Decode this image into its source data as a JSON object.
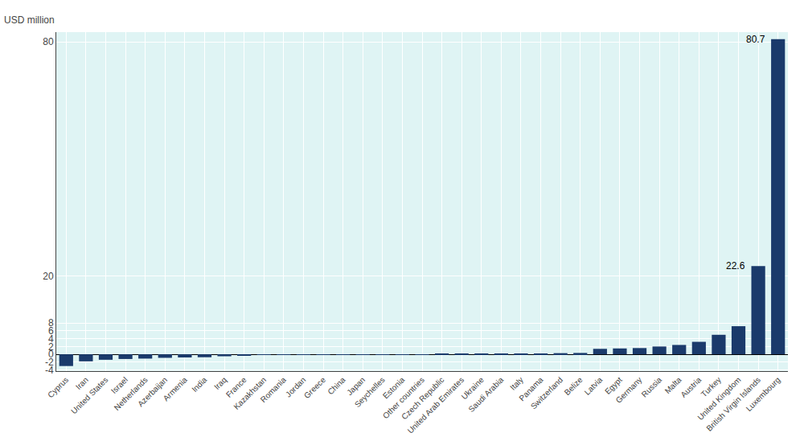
{
  "chart_data": {
    "type": "bar",
    "ylabel": "USD million",
    "categories": [
      "Cyprus",
      "Iran",
      "United States",
      "Israel",
      "Netherlands",
      "Azerbaijan",
      "Armenia",
      "India",
      "Iraq",
      "France",
      "Kazakhstan",
      "Romania",
      "Jordan",
      "Greece",
      "China",
      "Japan",
      "Seychelles",
      "Estonia",
      "Other countries",
      "Czech Republic",
      "United Arab Emirates",
      "Ukraine",
      "Saudi Arabia",
      "Italy",
      "Panama",
      "Switzerland",
      "Belize",
      "Latvia",
      "Egypt",
      "Germany",
      "Russia",
      "Malta",
      "Austria",
      "Turkey",
      "United Kingdom",
      "British Virgin Islands",
      "Luxembourg"
    ],
    "values": [
      -3.0,
      -1.8,
      -1.4,
      -1.2,
      -1.1,
      -0.9,
      -0.8,
      -0.75,
      -0.5,
      -0.25,
      -0.1,
      -0.05,
      -0.02,
      -0.01,
      -0.01,
      0.01,
      0.01,
      0.01,
      0.02,
      0.05,
      0.05,
      0.07,
      0.1,
      0.12,
      0.2,
      0.3,
      0.35,
      1.4,
      1.5,
      1.6,
      2.0,
      2.4,
      3.2,
      5.0,
      7.2,
      22.6,
      80.7
    ],
    "color": "#1a3a6b",
    "ylim": [
      -4.3,
      82.5
    ],
    "yticks": [
      -4,
      -2,
      0,
      2,
      4,
      6,
      8,
      20,
      80
    ],
    "grid": true,
    "annotations": [
      {
        "text": "22.6",
        "category": "British Virgin Islands"
      },
      {
        "text": "80.7",
        "category": "Luxembourg"
      }
    ]
  }
}
